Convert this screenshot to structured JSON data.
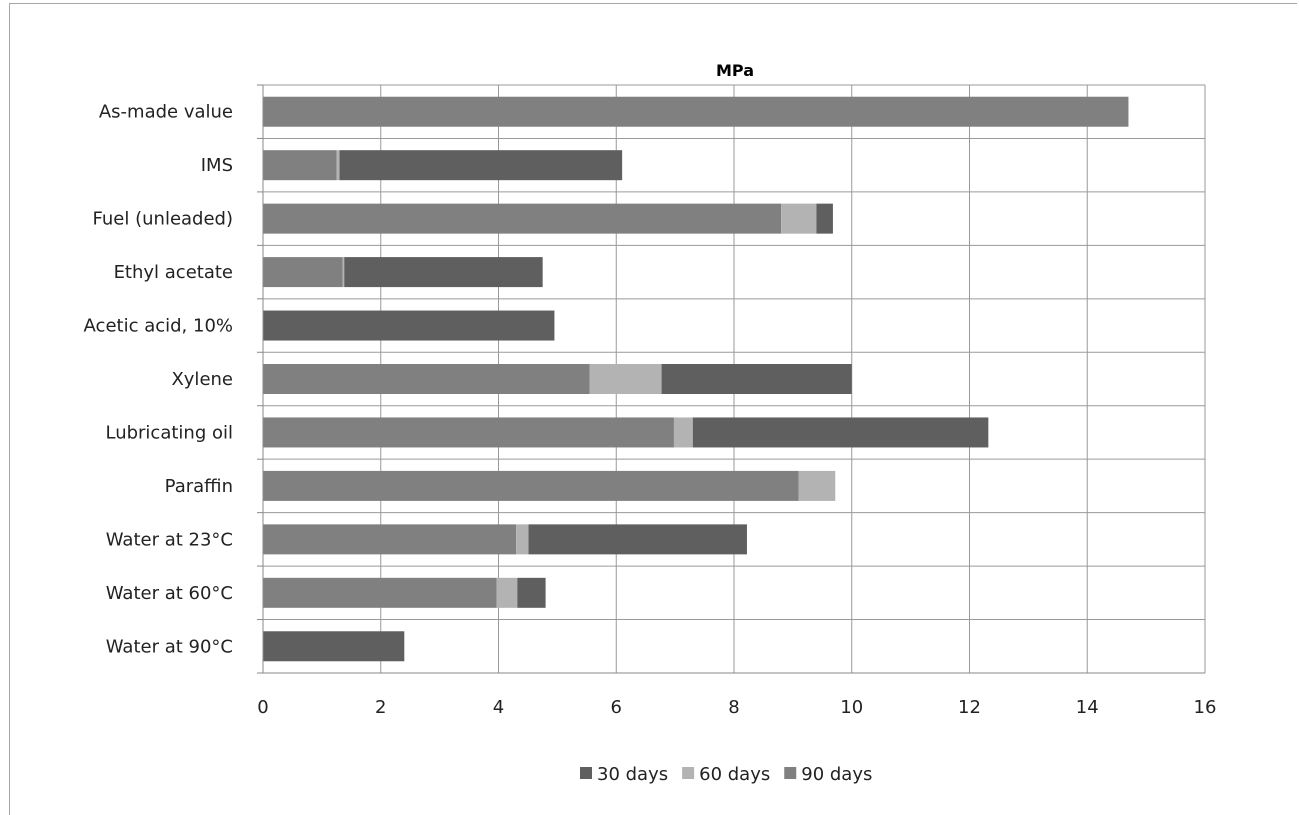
{
  "chart_data": {
    "type": "bar",
    "orientation": "horizontal",
    "stacked": true,
    "title": "MPa",
    "xlabel": "",
    "ylabel": "",
    "xlim": [
      0,
      16
    ],
    "xticks": [
      0,
      2,
      4,
      6,
      8,
      10,
      12,
      14,
      16
    ],
    "grid": true,
    "legend_position": "bottom",
    "categories": [
      "As-made value",
      "IMS",
      "Fuel (unleaded)",
      "Ethyl acetate",
      "Acetic acid, 10%",
      "Xylene",
      "Lubricating oil",
      "Paraffin",
      "Water at 23°C",
      "Water at 60°C",
      "Water at 90°C"
    ],
    "series": [
      {
        "name": "90 days",
        "color": "#808080",
        "values": [
          14.7,
          1.25,
          8.8,
          1.35,
          0,
          5.55,
          6.98,
          9.1,
          4.3,
          3.97,
          0
        ]
      },
      {
        "name": "60 days",
        "color": "#b3b3b3",
        "values": [
          0,
          0.05,
          0.6,
          0.03,
          0,
          1.22,
          0.32,
          0.62,
          0.21,
          0.35,
          0
        ]
      },
      {
        "name": "30 days",
        "color": "#5f5f5f",
        "values": [
          0,
          4.8,
          0.28,
          3.37,
          4.95,
          3.23,
          5.02,
          0,
          3.71,
          0.48,
          2.4
        ]
      }
    ],
    "legend_order": [
      "30 days",
      "60 days",
      "90 days"
    ]
  }
}
